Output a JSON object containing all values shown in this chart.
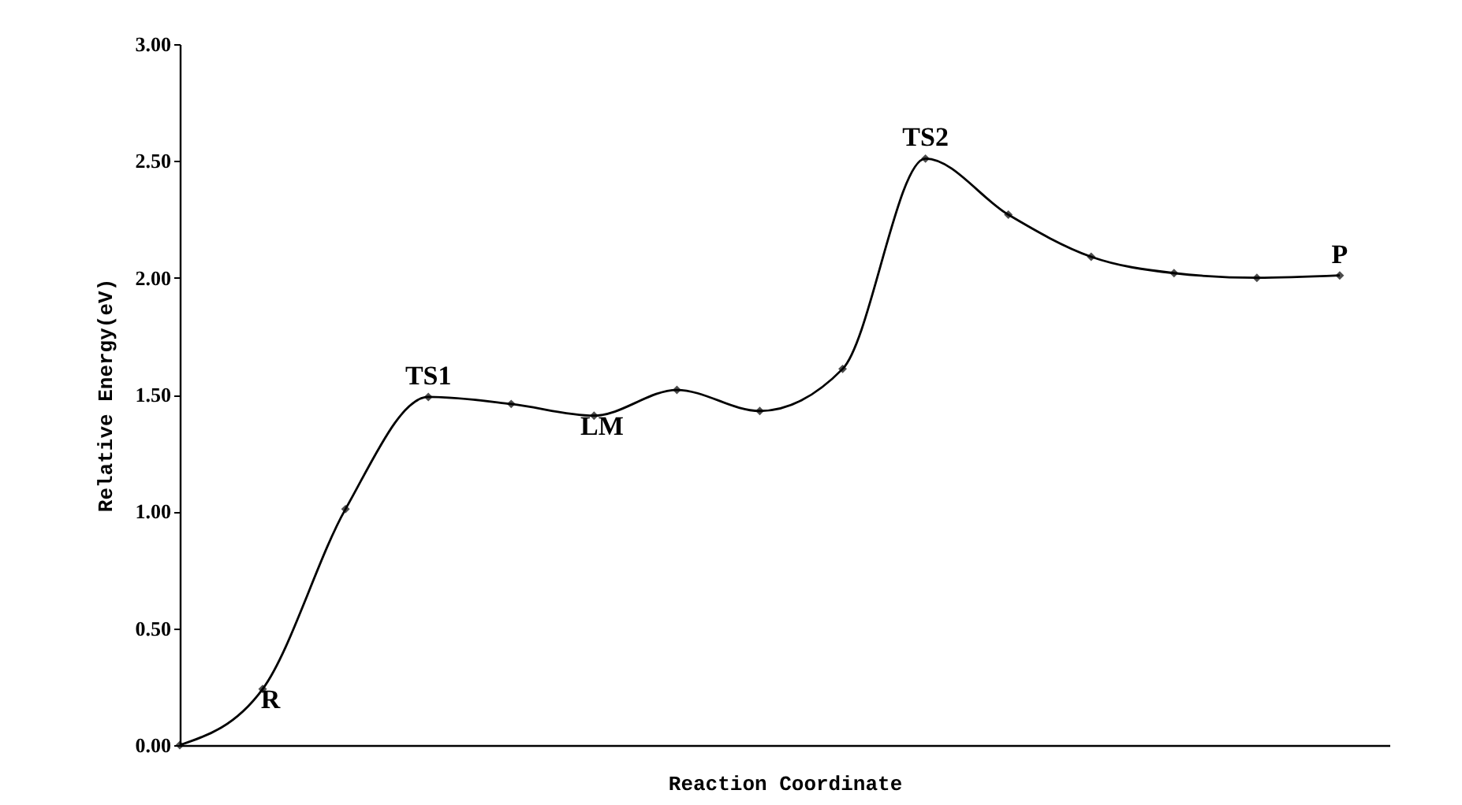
{
  "chart_data": {
    "type": "line",
    "xlabel": "Reaction Coordinate",
    "ylabel": "Relative Energy(eV)",
    "categories": [
      null,
      null,
      null,
      null,
      null,
      null,
      null,
      null,
      null,
      null,
      null,
      null,
      null,
      null,
      null
    ],
    "series": [
      {
        "color": "#000000",
        "values": [
          0.0,
          0.24,
          1.01,
          1.49,
          1.46,
          1.41,
          1.52,
          1.43,
          1.61,
          2.51,
          2.27,
          2.09,
          2.02,
          2.0,
          2.01
        ]
      }
    ],
    "ylim": [
      0,
      3
    ],
    "yticks": [
      {
        "value": 0,
        "label": "0.00"
      },
      {
        "value": 0.5,
        "label": "0.50"
      },
      {
        "value": 1,
        "label": "1.00"
      },
      {
        "value": 1.5,
        "label": "1.50"
      },
      {
        "value": 2,
        "label": "2.00"
      },
      {
        "value": 2.5,
        "label": "2.50"
      },
      {
        "value": 3,
        "label": "3.00"
      }
    ],
    "annotations": [
      {
        "text": "R",
        "y": 0.24
      },
      {
        "text": "TS1",
        "y": 1.49
      },
      {
        "text": "LM",
        "y": 1.41
      },
      {
        "text": "TS2",
        "y": 2.51
      },
      {
        "text": "P",
        "y": 2.01
      }
    ],
    "marker": "diamond",
    "line_style": "solid",
    "grid": false
  }
}
